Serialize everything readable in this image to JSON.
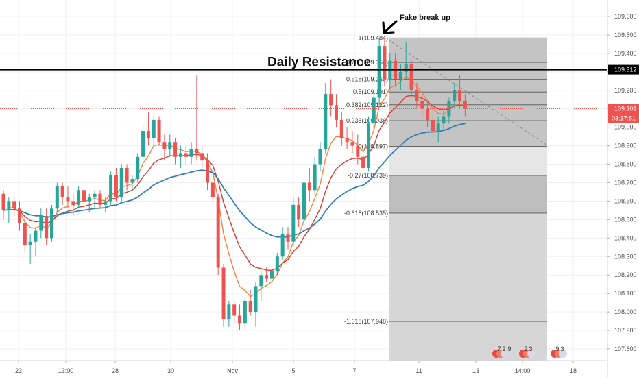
{
  "chart_data": {
    "type": "candlestick",
    "y_ticks": [
      "109.600",
      "109.500",
      "109.400",
      "109.300",
      "109.200",
      "109.100",
      "109.000",
      "108.900",
      "108.800",
      "108.700",
      "108.600",
      "108.500",
      "108.400",
      "108.300",
      "108.200",
      "108.100",
      "108.000",
      "107.900",
      "107.800"
    ],
    "ylim": [
      107.75,
      109.66
    ],
    "x_ticks": [
      "23",
      "13:00",
      "28",
      "30",
      "Nov",
      "5",
      "7",
      "11",
      "13",
      "14:00",
      "18"
    ],
    "fibonacci": {
      "levels": [
        {
          "label": "1(109.484)",
          "price": 109.484
        },
        {
          "label": "0.786(109.351)",
          "price": 109.351
        },
        {
          "label": "0.618(109.260)",
          "price": 109.26
        },
        {
          "label": "0.5(109.191)",
          "price": 109.191
        },
        {
          "label": "0.382(109.122)",
          "price": 109.122
        },
        {
          "label": "0.236(109.036)",
          "price": 109.036
        },
        {
          "label": "0(108.897)",
          "price": 108.897
        },
        {
          "label": "-0.27(108.739)",
          "price": 108.739
        },
        {
          "label": "-0.618(108.535)",
          "price": 108.535
        },
        {
          "label": "-1.618(107.948)",
          "price": 107.948
        }
      ]
    },
    "resistance": {
      "label": "Daily Resistance",
      "price": 109.312,
      "price_label": "109.312"
    },
    "current_price": {
      "price": 109.101,
      "price_label": "109.101",
      "countdown": "03:17:51"
    },
    "annotations": {
      "fake_break": "Fake break up"
    },
    "event_badges": [
      {
        "count": "7",
        "sub": "2",
        "extra": "9"
      },
      {
        "count": "2",
        "sub": "3",
        "extra": ""
      },
      {
        "count": "9",
        "sub": "3",
        "extra": ""
      }
    ],
    "candles": [
      {
        "o": 108.64,
        "h": 108.66,
        "l": 108.5,
        "c": 108.55
      },
      {
        "o": 108.55,
        "h": 108.62,
        "l": 108.48,
        "c": 108.6
      },
      {
        "o": 108.6,
        "h": 108.63,
        "l": 108.52,
        "c": 108.56
      },
      {
        "o": 108.56,
        "h": 108.6,
        "l": 108.44,
        "c": 108.48
      },
      {
        "o": 108.48,
        "h": 108.52,
        "l": 108.32,
        "c": 108.36
      },
      {
        "o": 108.36,
        "h": 108.42,
        "l": 108.26,
        "c": 108.38
      },
      {
        "o": 108.38,
        "h": 108.46,
        "l": 108.3,
        "c": 108.44
      },
      {
        "o": 108.44,
        "h": 108.56,
        "l": 108.4,
        "c": 108.52
      },
      {
        "o": 108.52,
        "h": 108.56,
        "l": 108.36,
        "c": 108.4
      },
      {
        "o": 108.4,
        "h": 108.58,
        "l": 108.38,
        "c": 108.56
      },
      {
        "o": 108.56,
        "h": 108.7,
        "l": 108.54,
        "c": 108.68
      },
      {
        "o": 108.68,
        "h": 108.7,
        "l": 108.58,
        "c": 108.62
      },
      {
        "o": 108.62,
        "h": 108.68,
        "l": 108.56,
        "c": 108.6
      },
      {
        "o": 108.6,
        "h": 108.64,
        "l": 108.52,
        "c": 108.58
      },
      {
        "o": 108.58,
        "h": 108.68,
        "l": 108.56,
        "c": 108.66
      },
      {
        "o": 108.66,
        "h": 108.68,
        "l": 108.56,
        "c": 108.6
      },
      {
        "o": 108.6,
        "h": 108.64,
        "l": 108.54,
        "c": 108.62
      },
      {
        "o": 108.62,
        "h": 108.66,
        "l": 108.56,
        "c": 108.64
      },
      {
        "o": 108.64,
        "h": 108.66,
        "l": 108.56,
        "c": 108.58
      },
      {
        "o": 108.58,
        "h": 108.62,
        "l": 108.54,
        "c": 108.6
      },
      {
        "o": 108.6,
        "h": 108.76,
        "l": 108.58,
        "c": 108.74
      },
      {
        "o": 108.74,
        "h": 108.78,
        "l": 108.6,
        "c": 108.62
      },
      {
        "o": 108.62,
        "h": 108.8,
        "l": 108.6,
        "c": 108.78
      },
      {
        "o": 108.78,
        "h": 108.8,
        "l": 108.66,
        "c": 108.7
      },
      {
        "o": 108.7,
        "h": 108.74,
        "l": 108.66,
        "c": 108.72
      },
      {
        "o": 108.72,
        "h": 108.86,
        "l": 108.7,
        "c": 108.84
      },
      {
        "o": 108.84,
        "h": 109.02,
        "l": 108.82,
        "c": 108.98
      },
      {
        "o": 108.98,
        "h": 109.08,
        "l": 108.9,
        "c": 108.94
      },
      {
        "o": 108.94,
        "h": 109.06,
        "l": 108.9,
        "c": 109.04
      },
      {
        "o": 109.04,
        "h": 109.06,
        "l": 108.9,
        "c": 108.92
      },
      {
        "o": 108.92,
        "h": 108.96,
        "l": 108.82,
        "c": 108.88
      },
      {
        "o": 108.88,
        "h": 108.96,
        "l": 108.84,
        "c": 108.92
      },
      {
        "o": 108.92,
        "h": 108.94,
        "l": 108.8,
        "c": 108.84
      },
      {
        "o": 108.84,
        "h": 108.9,
        "l": 108.78,
        "c": 108.86
      },
      {
        "o": 108.86,
        "h": 108.9,
        "l": 108.8,
        "c": 108.84
      },
      {
        "o": 108.84,
        "h": 108.92,
        "l": 108.8,
        "c": 108.88
      },
      {
        "o": 108.88,
        "h": 109.28,
        "l": 108.82,
        "c": 108.86
      },
      {
        "o": 108.86,
        "h": 108.9,
        "l": 108.78,
        "c": 108.82
      },
      {
        "o": 108.82,
        "h": 108.86,
        "l": 108.66,
        "c": 108.7
      },
      {
        "o": 108.7,
        "h": 108.72,
        "l": 108.58,
        "c": 108.62
      },
      {
        "o": 108.62,
        "h": 108.64,
        "l": 108.2,
        "c": 108.24
      },
      {
        "o": 108.24,
        "h": 108.26,
        "l": 107.92,
        "c": 107.96
      },
      {
        "o": 107.96,
        "h": 108.06,
        "l": 107.92,
        "c": 108.04
      },
      {
        "o": 108.04,
        "h": 108.06,
        "l": 107.94,
        "c": 107.98
      },
      {
        "o": 107.98,
        "h": 108.04,
        "l": 107.9,
        "c": 107.94
      },
      {
        "o": 107.94,
        "h": 108.08,
        "l": 107.9,
        "c": 108.06
      },
      {
        "o": 108.06,
        "h": 108.12,
        "l": 107.98,
        "c": 108.0
      },
      {
        "o": 108.0,
        "h": 108.16,
        "l": 107.92,
        "c": 108.14
      },
      {
        "o": 108.14,
        "h": 108.22,
        "l": 108.06,
        "c": 108.2
      },
      {
        "o": 108.2,
        "h": 108.24,
        "l": 108.16,
        "c": 108.18
      },
      {
        "o": 108.18,
        "h": 108.26,
        "l": 108.14,
        "c": 108.22
      },
      {
        "o": 108.22,
        "h": 108.32,
        "l": 108.2,
        "c": 108.3
      },
      {
        "o": 108.3,
        "h": 108.46,
        "l": 108.28,
        "c": 108.42
      },
      {
        "o": 108.42,
        "h": 108.46,
        "l": 108.34,
        "c": 108.38
      },
      {
        "o": 108.38,
        "h": 108.62,
        "l": 108.36,
        "c": 108.58
      },
      {
        "o": 108.58,
        "h": 108.62,
        "l": 108.46,
        "c": 108.5
      },
      {
        "o": 108.5,
        "h": 108.74,
        "l": 108.48,
        "c": 108.7
      },
      {
        "o": 108.7,
        "h": 108.78,
        "l": 108.6,
        "c": 108.66
      },
      {
        "o": 108.66,
        "h": 108.84,
        "l": 108.64,
        "c": 108.8
      },
      {
        "o": 108.8,
        "h": 108.92,
        "l": 108.76,
        "c": 108.88
      },
      {
        "o": 108.88,
        "h": 109.24,
        "l": 108.86,
        "c": 109.18
      },
      {
        "o": 109.18,
        "h": 109.26,
        "l": 109.06,
        "c": 109.12
      },
      {
        "o": 109.12,
        "h": 109.18,
        "l": 109.0,
        "c": 109.04
      },
      {
        "o": 109.04,
        "h": 109.08,
        "l": 108.9,
        "c": 108.94
      },
      {
        "o": 108.94,
        "h": 109.0,
        "l": 108.88,
        "c": 108.92
      },
      {
        "o": 108.92,
        "h": 108.98,
        "l": 108.86,
        "c": 108.9
      },
      {
        "o": 108.9,
        "h": 108.96,
        "l": 108.8,
        "c": 108.84
      },
      {
        "o": 108.84,
        "h": 108.88,
        "l": 108.74,
        "c": 108.78
      },
      {
        "o": 108.78,
        "h": 109.06,
        "l": 108.76,
        "c": 109.02
      },
      {
        "o": 109.02,
        "h": 109.2,
        "l": 108.98,
        "c": 109.16
      },
      {
        "o": 109.16,
        "h": 109.48,
        "l": 109.12,
        "c": 109.44
      },
      {
        "o": 109.44,
        "h": 109.48,
        "l": 109.22,
        "c": 109.26
      },
      {
        "o": 109.26,
        "h": 109.4,
        "l": 109.2,
        "c": 109.36
      },
      {
        "o": 109.36,
        "h": 109.4,
        "l": 109.22,
        "c": 109.26
      },
      {
        "o": 109.26,
        "h": 109.34,
        "l": 109.2,
        "c": 109.3
      },
      {
        "o": 109.3,
        "h": 109.46,
        "l": 109.26,
        "c": 109.34
      },
      {
        "o": 109.34,
        "h": 109.36,
        "l": 109.16,
        "c": 109.2
      },
      {
        "o": 109.2,
        "h": 109.24,
        "l": 109.1,
        "c": 109.14
      },
      {
        "o": 109.14,
        "h": 109.18,
        "l": 109.06,
        "c": 109.1
      },
      {
        "o": 109.1,
        "h": 109.14,
        "l": 109.0,
        "c": 109.04
      },
      {
        "o": 109.04,
        "h": 109.08,
        "l": 108.94,
        "c": 108.98
      },
      {
        "o": 108.98,
        "h": 109.06,
        "l": 108.92,
        "c": 109.02
      },
      {
        "o": 109.02,
        "h": 109.1,
        "l": 108.98,
        "c": 109.06
      },
      {
        "o": 109.06,
        "h": 109.16,
        "l": 109.02,
        "c": 109.14
      },
      {
        "o": 109.14,
        "h": 109.24,
        "l": 109.1,
        "c": 109.2
      },
      {
        "o": 109.2,
        "h": 109.28,
        "l": 109.1,
        "c": 109.14
      },
      {
        "o": 109.14,
        "h": 109.18,
        "l": 109.06,
        "c": 109.1
      }
    ]
  }
}
